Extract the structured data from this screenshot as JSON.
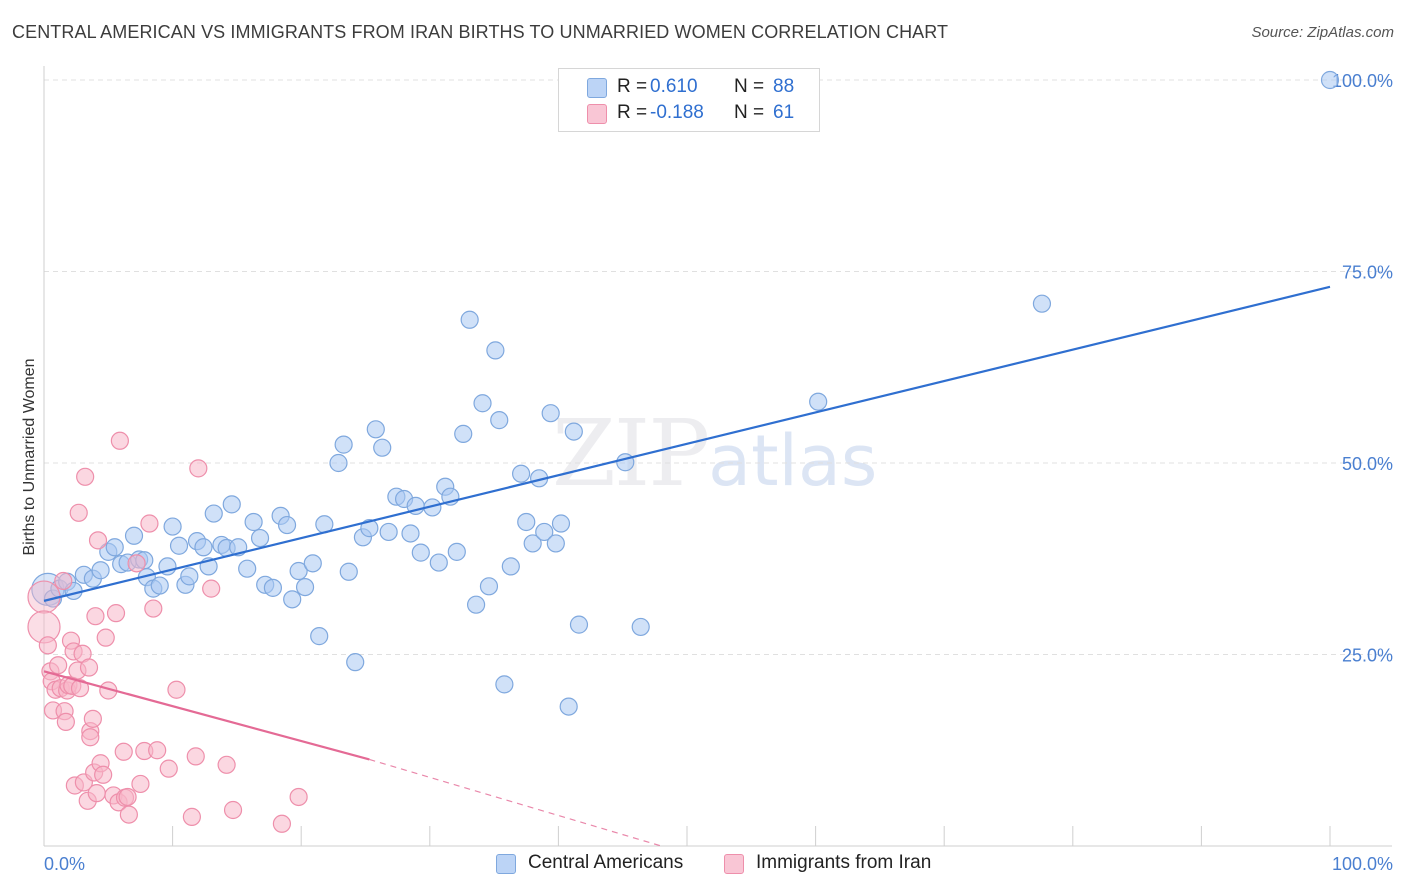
{
  "header": {
    "title": "CENTRAL AMERICAN VS IMMIGRANTS FROM IRAN BIRTHS TO UNMARRIED WOMEN CORRELATION CHART",
    "source": "Source: ZipAtlas.com"
  },
  "watermark": {
    "zip": "ZIP",
    "atlas": "atlas"
  },
  "colors": {
    "blue_fill": "#a9c8f2",
    "blue_stroke": "#7fa8de",
    "blue_line": "#2f6fd0",
    "pink_fill": "#f7b6c8",
    "pink_stroke": "#ee8fab",
    "pink_line": "#e46a95",
    "axis_text": "#4a7fd0",
    "grid": "#e0e0e0"
  },
  "legend": {
    "rows": [
      {
        "r_label": "R =",
        "r_value": "0.610",
        "n_label": "N =",
        "n_value": "88"
      },
      {
        "r_label": "R =",
        "r_value": "-0.188",
        "n_label": "N =",
        "n_value": "61"
      }
    ]
  },
  "bottom_legend": [
    "Central Americans",
    "Immigrants from Iran"
  ],
  "chart_data": {
    "type": "scatter",
    "title": "CENTRAL AMERICAN VS IMMIGRANTS FROM IRAN BIRTHS TO UNMARRIED WOMEN CORRELATION CHART",
    "xlabel": "",
    "ylabel": "Births to Unmarried Women",
    "xlim": [
      0,
      100
    ],
    "ylim": [
      0,
      100
    ],
    "x_tick_labels": [
      "0.0%",
      "100.0%"
    ],
    "y_tick_labels": [
      "25.0%",
      "50.0%",
      "75.0%",
      "100.0%"
    ],
    "y_ticks": [
      25,
      50,
      75,
      100
    ],
    "grid": true,
    "legend_placement": "top-center",
    "series": [
      {
        "name": "Central Americans",
        "trend": {
          "x": [
            0,
            100
          ],
          "y": [
            32.0,
            73.0
          ]
        },
        "points": [
          {
            "x": 0.3,
            "y": 33.5,
            "big": true
          },
          {
            "x": 0.7,
            "y": 32.3
          },
          {
            "x": 1.2,
            "y": 33.6
          },
          {
            "x": 1.8,
            "y": 34.5
          },
          {
            "x": 2.3,
            "y": 33.3
          },
          {
            "x": 3.1,
            "y": 35.4
          },
          {
            "x": 3.8,
            "y": 34.9
          },
          {
            "x": 4.4,
            "y": 36.0
          },
          {
            "x": 5.0,
            "y": 38.4
          },
          {
            "x": 5.5,
            "y": 39.0
          },
          {
            "x": 6.0,
            "y": 36.8
          },
          {
            "x": 6.5,
            "y": 37.0
          },
          {
            "x": 7.0,
            "y": 40.5
          },
          {
            "x": 7.4,
            "y": 37.4
          },
          {
            "x": 7.8,
            "y": 37.3
          },
          {
            "x": 8.0,
            "y": 35.1
          },
          {
            "x": 8.5,
            "y": 33.6
          },
          {
            "x": 9.0,
            "y": 34.0
          },
          {
            "x": 9.6,
            "y": 36.5
          },
          {
            "x": 10.0,
            "y": 41.7
          },
          {
            "x": 10.5,
            "y": 39.2
          },
          {
            "x": 11.0,
            "y": 34.1
          },
          {
            "x": 11.3,
            "y": 35.2
          },
          {
            "x": 11.9,
            "y": 39.8
          },
          {
            "x": 12.4,
            "y": 39.0
          },
          {
            "x": 12.8,
            "y": 36.5
          },
          {
            "x": 13.2,
            "y": 43.4
          },
          {
            "x": 13.8,
            "y": 39.3
          },
          {
            "x": 14.2,
            "y": 38.9
          },
          {
            "x": 14.6,
            "y": 44.6
          },
          {
            "x": 15.1,
            "y": 39.0
          },
          {
            "x": 15.8,
            "y": 36.2
          },
          {
            "x": 16.3,
            "y": 42.3
          },
          {
            "x": 16.8,
            "y": 40.2
          },
          {
            "x": 17.2,
            "y": 34.1
          },
          {
            "x": 17.8,
            "y": 33.7
          },
          {
            "x": 18.4,
            "y": 43.1
          },
          {
            "x": 18.9,
            "y": 41.9
          },
          {
            "x": 19.3,
            "y": 32.2
          },
          {
            "x": 19.8,
            "y": 35.9
          },
          {
            "x": 20.3,
            "y": 33.8
          },
          {
            "x": 20.9,
            "y": 36.9
          },
          {
            "x": 21.4,
            "y": 27.4
          },
          {
            "x": 21.8,
            "y": 42.0
          },
          {
            "x": 22.9,
            "y": 50.0
          },
          {
            "x": 23.3,
            "y": 52.4
          },
          {
            "x": 23.7,
            "y": 35.8
          },
          {
            "x": 24.2,
            "y": 24.0
          },
          {
            "x": 24.8,
            "y": 40.3
          },
          {
            "x": 25.3,
            "y": 41.5
          },
          {
            "x": 25.8,
            "y": 54.4
          },
          {
            "x": 26.3,
            "y": 52.0
          },
          {
            "x": 26.8,
            "y": 41.0
          },
          {
            "x": 27.4,
            "y": 45.6
          },
          {
            "x": 28.0,
            "y": 45.3
          },
          {
            "x": 28.5,
            "y": 40.8
          },
          {
            "x": 28.9,
            "y": 44.4
          },
          {
            "x": 29.3,
            "y": 38.3
          },
          {
            "x": 30.2,
            "y": 44.2
          },
          {
            "x": 30.7,
            "y": 37.0
          },
          {
            "x": 31.2,
            "y": 46.9
          },
          {
            "x": 31.6,
            "y": 45.6
          },
          {
            "x": 32.1,
            "y": 38.4
          },
          {
            "x": 32.6,
            "y": 53.8
          },
          {
            "x": 33.1,
            "y": 68.7
          },
          {
            "x": 33.6,
            "y": 31.5
          },
          {
            "x": 34.1,
            "y": 57.8
          },
          {
            "x": 34.6,
            "y": 33.9
          },
          {
            "x": 35.1,
            "y": 64.7
          },
          {
            "x": 35.4,
            "y": 55.6
          },
          {
            "x": 35.8,
            "y": 21.1
          },
          {
            "x": 36.3,
            "y": 36.5
          },
          {
            "x": 37.1,
            "y": 48.6
          },
          {
            "x": 37.5,
            "y": 42.3
          },
          {
            "x": 38.0,
            "y": 39.5
          },
          {
            "x": 38.5,
            "y": 48.0
          },
          {
            "x": 38.9,
            "y": 41.0
          },
          {
            "x": 39.4,
            "y": 56.5
          },
          {
            "x": 39.8,
            "y": 39.5
          },
          {
            "x": 40.2,
            "y": 42.1
          },
          {
            "x": 40.8,
            "y": 18.2
          },
          {
            "x": 41.2,
            "y": 54.1
          },
          {
            "x": 41.6,
            "y": 28.9
          },
          {
            "x": 45.2,
            "y": 50.1
          },
          {
            "x": 46.4,
            "y": 28.6
          },
          {
            "x": 60.2,
            "y": 58.0
          },
          {
            "x": 77.6,
            "y": 70.8
          },
          {
            "x": 100.0,
            "y": 100.0
          }
        ]
      },
      {
        "name": "Immigrants from Iran",
        "trend": {
          "x": [
            0,
            25.3
          ],
          "y": [
            22.8,
            11.3
          ]
        },
        "trend_dashed": {
          "x": [
            25.3,
            48.0
          ],
          "y": [
            11.3,
            0.0
          ]
        },
        "points": [
          {
            "x": 0.0,
            "y": 32.5,
            "big": true
          },
          {
            "x": 0.0,
            "y": 28.6,
            "big": true
          },
          {
            "x": 0.3,
            "y": 26.2
          },
          {
            "x": 0.5,
            "y": 22.8
          },
          {
            "x": 0.6,
            "y": 21.5
          },
          {
            "x": 0.7,
            "y": 17.7
          },
          {
            "x": 0.9,
            "y": 20.4
          },
          {
            "x": 1.1,
            "y": 23.6
          },
          {
            "x": 1.3,
            "y": 20.6
          },
          {
            "x": 1.5,
            "y": 34.6
          },
          {
            "x": 1.6,
            "y": 17.6
          },
          {
            "x": 1.7,
            "y": 16.2
          },
          {
            "x": 1.8,
            "y": 20.3
          },
          {
            "x": 1.9,
            "y": 21.0
          },
          {
            "x": 2.1,
            "y": 26.8
          },
          {
            "x": 2.2,
            "y": 20.9
          },
          {
            "x": 2.3,
            "y": 25.4
          },
          {
            "x": 2.4,
            "y": 7.9
          },
          {
            "x": 2.6,
            "y": 22.9
          },
          {
            "x": 2.7,
            "y": 43.5
          },
          {
            "x": 2.8,
            "y": 20.6
          },
          {
            "x": 3.0,
            "y": 25.1
          },
          {
            "x": 3.1,
            "y": 8.3
          },
          {
            "x": 3.2,
            "y": 48.2
          },
          {
            "x": 3.4,
            "y": 5.9
          },
          {
            "x": 3.5,
            "y": 23.3
          },
          {
            "x": 3.6,
            "y": 15.0
          },
          {
            "x": 3.6,
            "y": 14.2
          },
          {
            "x": 3.8,
            "y": 16.6
          },
          {
            "x": 3.9,
            "y": 9.6
          },
          {
            "x": 4.0,
            "y": 30.0
          },
          {
            "x": 4.1,
            "y": 6.9
          },
          {
            "x": 4.2,
            "y": 39.9
          },
          {
            "x": 4.4,
            "y": 10.8
          },
          {
            "x": 4.6,
            "y": 9.3
          },
          {
            "x": 4.8,
            "y": 27.2
          },
          {
            "x": 5.0,
            "y": 20.3
          },
          {
            "x": 5.4,
            "y": 6.6
          },
          {
            "x": 5.6,
            "y": 30.4
          },
          {
            "x": 5.8,
            "y": 5.7
          },
          {
            "x": 5.9,
            "y": 52.9
          },
          {
            "x": 6.2,
            "y": 12.3
          },
          {
            "x": 6.3,
            "y": 6.3
          },
          {
            "x": 6.5,
            "y": 6.4
          },
          {
            "x": 6.6,
            "y": 4.1
          },
          {
            "x": 7.2,
            "y": 36.9
          },
          {
            "x": 7.5,
            "y": 8.1
          },
          {
            "x": 7.8,
            "y": 12.4
          },
          {
            "x": 8.2,
            "y": 42.1
          },
          {
            "x": 8.5,
            "y": 31.0
          },
          {
            "x": 8.8,
            "y": 12.5
          },
          {
            "x": 9.7,
            "y": 10.1
          },
          {
            "x": 10.3,
            "y": 20.4
          },
          {
            "x": 11.5,
            "y": 3.8
          },
          {
            "x": 11.8,
            "y": 11.7
          },
          {
            "x": 12.0,
            "y": 49.3
          },
          {
            "x": 13.0,
            "y": 33.6
          },
          {
            "x": 14.2,
            "y": 10.6
          },
          {
            "x": 14.7,
            "y": 4.7
          },
          {
            "x": 18.5,
            "y": 2.9
          },
          {
            "x": 19.8,
            "y": 6.4
          }
        ]
      }
    ]
  }
}
